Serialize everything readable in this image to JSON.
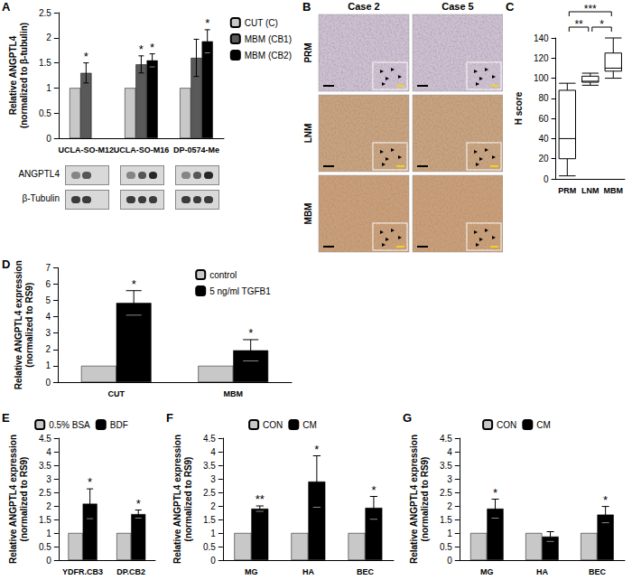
{
  "chart_data": [
    {
      "panel": "A",
      "type": "bar",
      "y_label": "Relative ANGPTL4\n(normalized to β-tubulin)",
      "categories": [
        "UCLA-SO-M12",
        "UCLA-SO-M16",
        "DP-0574-Me"
      ],
      "series": [
        {
          "name": "CUT (C)",
          "color": "#c8c8c8",
          "values": [
            1,
            1,
            1
          ],
          "errors": [
            null,
            null,
            null
          ],
          "significance": [
            null,
            null,
            null
          ]
        },
        {
          "name": "MBM (CB1)",
          "color": "#595959",
          "values": [
            1.3,
            1.47,
            1.6
          ],
          "errors": [
            0.2,
            0.17,
            0.37
          ],
          "significance": [
            "*",
            "*",
            null
          ]
        },
        {
          "name": "MBM (CB2)",
          "color": "#000000",
          "values": [
            null,
            1.55,
            1.93
          ],
          "errors": [
            null,
            0.13,
            0.23
          ],
          "significance": [
            null,
            "*",
            "*"
          ]
        }
      ],
      "ylim": [
        0,
        2.5
      ],
      "yticks": [
        0,
        0.5,
        1,
        1.5,
        2,
        2.5
      ],
      "grid": false,
      "legend": "right",
      "blot_rows": [
        "ANGPTL4",
        "β-Tubulin"
      ]
    },
    {
      "panel": "C",
      "type": "boxplot",
      "y_label": "H score",
      "categories": [
        "PRM",
        "LNM",
        "MBM"
      ],
      "values": [
        [
          3,
          20,
          40,
          88,
          95
        ],
        [
          93,
          96,
          97,
          102,
          105
        ],
        [
          100,
          107,
          110,
          125,
          140
        ]
      ],
      "comparisons": [
        {
          "from": "PRM",
          "to": "LNM",
          "label": "**"
        },
        {
          "from": "PRM",
          "to": "MBM",
          "label": "***"
        },
        {
          "from": "LNM",
          "to": "MBM",
          "label": "*"
        }
      ],
      "ylim": [
        0,
        140
      ],
      "yticks": [
        0,
        20,
        40,
        60,
        80,
        100,
        120,
        140
      ],
      "grid": false
    },
    {
      "panel": "D",
      "type": "bar",
      "y_label": "Relative ANGPTL4 expression\n(normalized to RS9)",
      "categories": [
        "CUT",
        "MBM"
      ],
      "series": [
        {
          "name": "control",
          "color": "#c8c8c8",
          "values": [
            1,
            1
          ],
          "errors": [
            null,
            null
          ],
          "significance": [
            null,
            null
          ]
        },
        {
          "name": "5 ng/ml TGFB1",
          "color": "#000000",
          "values": [
            4.85,
            1.95
          ],
          "errors": [
            0.75,
            0.65
          ],
          "significance": [
            "*",
            "*"
          ]
        }
      ],
      "ylim": [
        0,
        7
      ],
      "yticks": [
        0,
        1,
        2,
        3,
        4,
        5,
        6,
        7
      ],
      "grid": false,
      "legend": "top-right"
    },
    {
      "panel": "E",
      "type": "bar",
      "y_label": "Relative ANGPTL4 expression\n(normalized to RS9)",
      "categories": [
        "YDFR.CB3",
        "DP.CB2"
      ],
      "series": [
        {
          "name": "0.5% BSA",
          "color": "#c8c8c8",
          "values": [
            1,
            1
          ],
          "errors": [
            null,
            null
          ],
          "significance": [
            null,
            null
          ]
        },
        {
          "name": "BDF",
          "color": "#000000",
          "values": [
            2.08,
            1.7
          ],
          "errors": [
            0.55,
            0.15
          ],
          "significance": [
            "*",
            "*"
          ]
        }
      ],
      "ylim": [
        0,
        4.5
      ],
      "yticks": [
        0,
        0.5,
        1,
        1.5,
        2,
        2.5,
        3,
        3.5,
        4,
        4.5
      ],
      "grid": false,
      "legend": "top"
    },
    {
      "panel": "F",
      "type": "bar",
      "y_label": "Relative ANGPTL4 expression\n(normalized to RS9)",
      "categories": [
        "MG",
        "HA",
        "BEC"
      ],
      "series": [
        {
          "name": "CON",
          "color": "#c8c8c8",
          "values": [
            1,
            1,
            1
          ],
          "errors": [
            null,
            null,
            null
          ],
          "significance": [
            null,
            null,
            null
          ]
        },
        {
          "name": "CM",
          "color": "#000000",
          "values": [
            1.9,
            2.9,
            1.93
          ],
          "errors": [
            0.1,
            0.95,
            0.42
          ],
          "significance": [
            "**",
            "*",
            "*"
          ]
        }
      ],
      "ylim": [
        0,
        4.5
      ],
      "yticks": [
        0,
        0.5,
        1,
        1.5,
        2,
        2.5,
        3,
        3.5,
        4,
        4.5
      ],
      "grid": false,
      "legend": "top"
    },
    {
      "panel": "G",
      "type": "bar",
      "y_label": "Relative ANGPTL4 expression\n(normalized to RS9)",
      "categories": [
        "MG",
        "HA",
        "BEC"
      ],
      "series": [
        {
          "name": "CON",
          "color": "#c8c8c8",
          "values": [
            1,
            1,
            1
          ],
          "errors": [
            null,
            null,
            null
          ],
          "significance": [
            null,
            null,
            null
          ]
        },
        {
          "name": "CM",
          "color": "#000000",
          "values": [
            1.9,
            0.87,
            1.68
          ],
          "errors": [
            0.35,
            0.18,
            0.3
          ],
          "significance": [
            "*",
            null,
            "*"
          ]
        }
      ],
      "ylim": [
        0,
        4.5
      ],
      "yticks": [
        0,
        0.5,
        1,
        1.5,
        2,
        2.5,
        3,
        3.5,
        4,
        4.5
      ],
      "grid": false,
      "legend": "top"
    }
  ],
  "images": {
    "panel": "B",
    "columns": [
      "Case 2",
      "Case 5"
    ],
    "rows": [
      "PRM",
      "LNM",
      "MBM"
    ]
  }
}
